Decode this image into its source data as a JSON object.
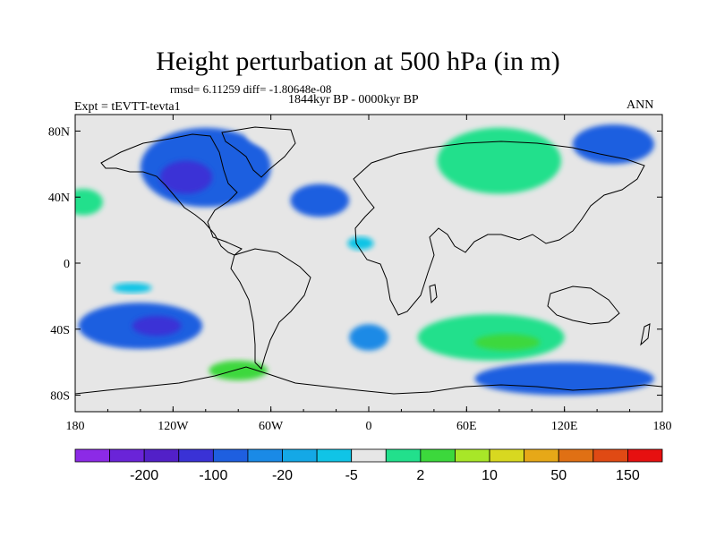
{
  "title": "Height perturbation at 500 hPa (in m)",
  "stats": "rmsd= 6.11259 diff= -1.80648e-08",
  "period": "1844kyr BP - 0000kyr BP",
  "experiment": "Expt = tEVTT-tevta1",
  "season": "ANN",
  "map": {
    "lon_range": [
      -180,
      180
    ],
    "lat_range": [
      -90,
      90
    ],
    "y_ticks": [
      {
        "lat": 80,
        "label": "80N"
      },
      {
        "lat": 40,
        "label": "40N"
      },
      {
        "lat": 0,
        "label": "0"
      },
      {
        "lat": -40,
        "label": "40S"
      },
      {
        "lat": -80,
        "label": "80S"
      }
    ],
    "x_ticks": [
      {
        "lon": -180,
        "label": "180"
      },
      {
        "lon": -120,
        "label": "120W"
      },
      {
        "lon": -60,
        "label": "60W"
      },
      {
        "lon": 0,
        "label": "0"
      },
      {
        "lon": 60,
        "label": "60E"
      },
      {
        "lon": 120,
        "label": "120E"
      },
      {
        "lon": 180,
        "label": "180"
      }
    ],
    "field_regions": [
      {
        "name": "north-pacific-ne-positive",
        "lon": 180,
        "lat": 40,
        "rlon": 30,
        "rlat": 18,
        "level": 8
      },
      {
        "name": "north-pacific-nw-positive",
        "lon": -180,
        "lat": 40,
        "rlon": 30,
        "rlat": 18,
        "level": 8
      },
      {
        "name": "north-pacific-core",
        "lon": -175,
        "lat": 37,
        "rlon": 12,
        "rlat": 8,
        "level": 9
      },
      {
        "name": "north-america-negative",
        "lon": -100,
        "lat": 58,
        "rlon": 40,
        "rlat": 24,
        "level": 4
      },
      {
        "name": "north-america-core",
        "lon": -112,
        "lat": 52,
        "rlon": 16,
        "rlat": 10,
        "level": 3
      },
      {
        "name": "greenland-positive",
        "lon": -45,
        "lat": 78,
        "rlon": 30,
        "rlat": 10,
        "level": 8
      },
      {
        "name": "atlantic-negative",
        "lon": -30,
        "lat": 38,
        "rlon": 18,
        "rlat": 10,
        "level": 4
      },
      {
        "name": "siberia-positive",
        "lon": 80,
        "lat": 62,
        "rlon": 38,
        "rlat": 20,
        "level": 9
      },
      {
        "name": "pacific-nw-negative",
        "lon": 150,
        "lat": 72,
        "rlon": 25,
        "rlat": 12,
        "level": 4
      },
      {
        "name": "south-pacific-negative",
        "lon": -140,
        "lat": -38,
        "rlon": 38,
        "rlat": 14,
        "level": 4
      },
      {
        "name": "south-pacific-core",
        "lon": -130,
        "lat": -38,
        "rlon": 15,
        "rlat": 6,
        "level": 3
      },
      {
        "name": "southern-ring-positive",
        "lon": -110,
        "lat": -65,
        "rlon": 70,
        "rlat": 10,
        "level": 8
      },
      {
        "name": "drake-core",
        "lon": -80,
        "lat": -65,
        "rlon": 18,
        "rlat": 6,
        "level": 10
      },
      {
        "name": "indian-ocean-positive",
        "lon": 75,
        "lat": -45,
        "rlon": 45,
        "rlat": 14,
        "level": 9
      },
      {
        "name": "indian-ocean-core",
        "lon": 85,
        "lat": -48,
        "rlon": 20,
        "rlat": 5,
        "level": 10
      },
      {
        "name": "south-indian-negative",
        "lon": 120,
        "lat": -70,
        "rlon": 55,
        "rlat": 10,
        "level": 4
      },
      {
        "name": "south-atlantic-negative",
        "lon": 0,
        "lat": -45,
        "rlon": 12,
        "rlat": 8,
        "level": 5
      },
      {
        "name": "tropical-atlantic-positive",
        "lon": -5,
        "lat": 12,
        "rlon": 8,
        "rlat": 4,
        "level": 7
      },
      {
        "name": "tropical-east-pacific-positive",
        "lon": -145,
        "lat": -15,
        "rlon": 12,
        "rlat": 3,
        "level": 7
      }
    ]
  },
  "colorbar": {
    "colors": [
      "#8c2ae6",
      "#6a24d8",
      "#5220c8",
      "#3a32d6",
      "#1e5fe0",
      "#1a8ae6",
      "#14a8e6",
      "#10c4e6",
      "#e6e6e6",
      "#22e08c",
      "#3cd83c",
      "#a8e628",
      "#d8d820",
      "#e6a818",
      "#e07014",
      "#e04a14",
      "#e61010"
    ],
    "labels": [
      {
        "after": 1,
        "text": "-200"
      },
      {
        "after": 3,
        "text": "-100"
      },
      {
        "after": 5,
        "text": "-20"
      },
      {
        "after": 7,
        "text": "-5"
      },
      {
        "after": 9,
        "text": "2"
      },
      {
        "after": 11,
        "text": "10"
      },
      {
        "after": 13,
        "text": "50"
      },
      {
        "after": 15,
        "text": "150"
      }
    ]
  }
}
